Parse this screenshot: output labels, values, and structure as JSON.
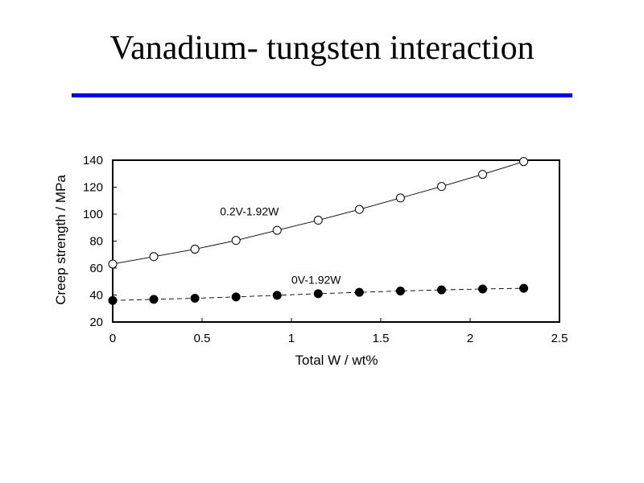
{
  "slide": {
    "title": "Vanadium- tungsten interaction",
    "rule_color": "#0000ee"
  },
  "chart_data": {
    "type": "line",
    "title": "",
    "xlabel": "Total W / wt%",
    "ylabel": "Creep strength / MPa",
    "xlim": [
      0,
      2.5
    ],
    "ylim": [
      20,
      140
    ],
    "xticks": [
      0,
      0.5,
      1,
      1.5,
      2,
      2.5
    ],
    "xtick_labels": [
      "0",
      "0.5",
      "1",
      "1.5",
      "2",
      "2.5"
    ],
    "yticks": [
      20,
      40,
      60,
      80,
      100,
      120,
      140
    ],
    "grid": false,
    "series": [
      {
        "name": "0.2V-1.92W",
        "marker": "open-circle",
        "line": "solid",
        "x": [
          0,
          0.23,
          0.46,
          0.69,
          0.92,
          1.15,
          1.38,
          1.61,
          1.84,
          2.07,
          2.3
        ],
        "y": [
          63,
          68.5,
          74,
          80.5,
          88,
          95.5,
          103.5,
          112,
          120.5,
          129.5,
          139
        ]
      },
      {
        "name": "0V-1.92W",
        "marker": "filled-circle",
        "line": "dashed",
        "x": [
          0,
          0.23,
          0.46,
          0.69,
          0.92,
          1.15,
          1.38,
          1.61,
          1.84,
          2.07,
          2.3
        ],
        "y": [
          36,
          36.8,
          37.6,
          38.6,
          39.8,
          41,
          42,
          43,
          43.8,
          44.5,
          45
        ]
      }
    ],
    "annotations": [
      {
        "text": "0.2V-1.92W",
        "x": 0.6,
        "y": 99
      },
      {
        "text": "0V-1.92W",
        "x": 1.0,
        "y": 48.5
      }
    ]
  }
}
